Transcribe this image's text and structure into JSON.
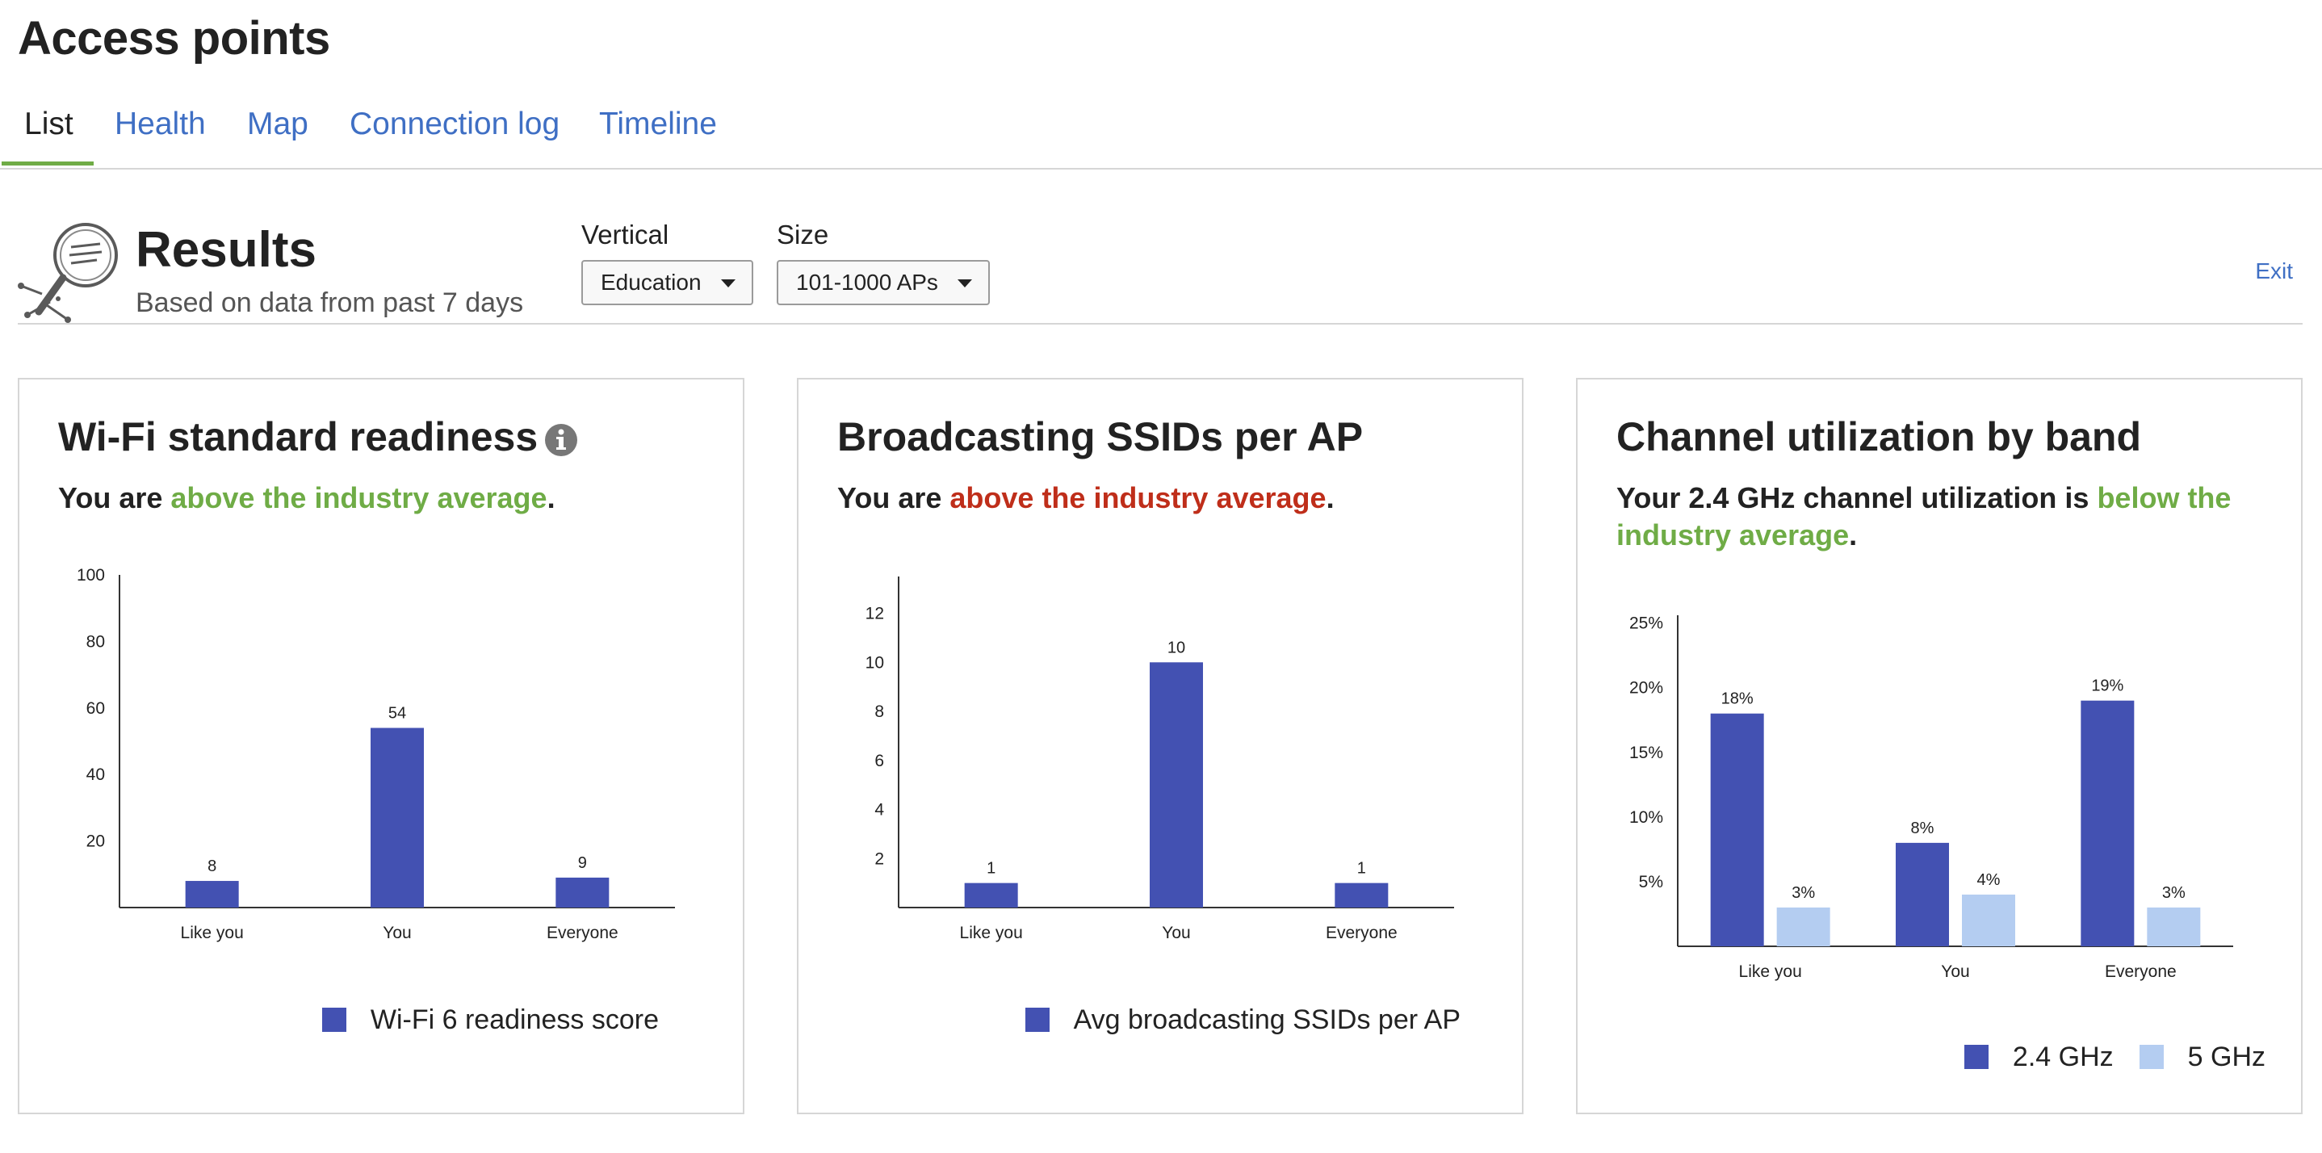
{
  "page": {
    "title": "Access points"
  },
  "tabs": [
    {
      "label": "List",
      "active": true
    },
    {
      "label": "Health",
      "active": false
    },
    {
      "label": "Map",
      "active": false
    },
    {
      "label": "Connection log",
      "active": false
    },
    {
      "label": "Timeline",
      "active": false
    }
  ],
  "results": {
    "icon": "magnifier-chart-icon",
    "title": "Results",
    "subtitle": "Based on data from past 7 days",
    "exit_label": "Exit",
    "filters": {
      "vertical": {
        "label": "Vertical",
        "value": "Education"
      },
      "size": {
        "label": "Size",
        "value": "101-1000 APs"
      }
    }
  },
  "colors": {
    "primary_bar": "#4351b2",
    "secondary_bar": "#b4cdf1",
    "good": "#6fac46",
    "bad": "#bf2e1a",
    "link": "#3f6fc4",
    "tab_underline": "#6fac46"
  },
  "cards": [
    {
      "title": "Wi-Fi standard readiness",
      "info_icon": "info-icon",
      "status": {
        "prefix": "You are ",
        "highlight": "above the industry average",
        "suffix": ".",
        "tone": "good"
      }
    },
    {
      "title": "Broadcasting SSIDs per AP",
      "status": {
        "prefix": "You are ",
        "highlight": "above the industry average",
        "suffix": ".",
        "tone": "bad"
      }
    },
    {
      "title": "Channel utilization by band",
      "status": {
        "prefix": "Your 2.4 GHz channel utilization is ",
        "highlight": "below the industry average",
        "suffix": ".",
        "tone": "good"
      }
    }
  ],
  "chart_data": [
    {
      "type": "bar",
      "categories": [
        "Like you",
        "You",
        "Everyone"
      ],
      "series": [
        {
          "name": "Wi-Fi 6 readiness score",
          "values": [
            8,
            54,
            9
          ]
        }
      ],
      "ylim": [
        0,
        100
      ],
      "yticks": [
        20,
        40,
        60,
        80,
        100
      ],
      "ytick_labels": [
        "20",
        "40",
        "60",
        "80",
        "100"
      ],
      "value_labels": [
        [
          "8",
          "54",
          "9"
        ]
      ],
      "legend": "bottom-right",
      "grid": false
    },
    {
      "type": "bar",
      "categories": [
        "Like you",
        "You",
        "Everyone"
      ],
      "series": [
        {
          "name": "Avg broadcasting SSIDs per AP",
          "values": [
            1,
            10,
            1
          ]
        }
      ],
      "ylim": [
        0,
        13.5
      ],
      "yticks": [
        2,
        4,
        6,
        8,
        10,
        12
      ],
      "ytick_labels": [
        "2",
        "4",
        "6",
        "8",
        "10",
        "12"
      ],
      "value_labels": [
        [
          "1",
          "10",
          "1"
        ]
      ],
      "legend": "bottom-right",
      "grid": false
    },
    {
      "type": "bar",
      "categories": [
        "Like you",
        "You",
        "Everyone"
      ],
      "series": [
        {
          "name": "2.4 GHz",
          "values": [
            18,
            8,
            19
          ]
        },
        {
          "name": "5 GHz",
          "values": [
            3,
            4,
            3
          ]
        }
      ],
      "ylim": [
        0,
        25.6
      ],
      "yticks": [
        5,
        10,
        15,
        20,
        25
      ],
      "ytick_labels": [
        "5%",
        "10%",
        "15%",
        "20%",
        "25%"
      ],
      "value_labels": [
        [
          "18%",
          "8%",
          "19%"
        ],
        [
          "3%",
          "4%",
          "3%"
        ]
      ],
      "legend": "bottom-right",
      "grid": false
    }
  ]
}
